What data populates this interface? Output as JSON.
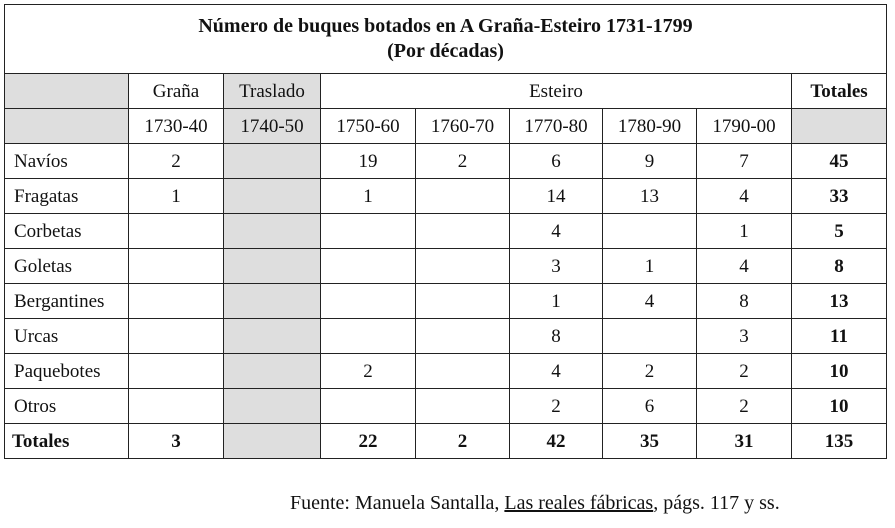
{
  "title": {
    "line1": "Número de buques botados en A Graña-Esteiro 1731-1799",
    "line2": "(Por décadas)"
  },
  "header": {
    "places": [
      "Graña",
      "Traslado",
      "Esteiro"
    ],
    "totals": "Totales",
    "decades": [
      "1730-40",
      "1740-50",
      "1750-60",
      "1760-70",
      "1770-80",
      "1780-90",
      "1790-00"
    ]
  },
  "rows": [
    {
      "label": "Navíos",
      "values": [
        "2",
        "",
        "19",
        "2",
        "6",
        "9",
        "7"
      ],
      "total": "45"
    },
    {
      "label": "Fragatas",
      "values": [
        "1",
        "",
        "1",
        "",
        "14",
        "13",
        "4"
      ],
      "total": "33"
    },
    {
      "label": "Corbetas",
      "values": [
        "",
        "",
        "",
        "",
        "4",
        "",
        "1"
      ],
      "total": "5"
    },
    {
      "label": "Goletas",
      "values": [
        "",
        "",
        "",
        "",
        "3",
        "1",
        "4"
      ],
      "total": "8"
    },
    {
      "label": "Bergantines",
      "values": [
        "",
        "",
        "",
        "",
        "1",
        "4",
        "8"
      ],
      "total": "13"
    },
    {
      "label": "Urcas",
      "values": [
        "",
        "",
        "",
        "",
        "8",
        "",
        "3"
      ],
      "total": "11"
    },
    {
      "label": "Paquebotes",
      "values": [
        "",
        "",
        "2",
        "",
        "4",
        "2",
        "2"
      ],
      "total": "10"
    },
    {
      "label": "Otros",
      "values": [
        "",
        "",
        "",
        "",
        "2",
        "6",
        "2"
      ],
      "total": "10"
    }
  ],
  "totals_row": {
    "label": "Totales",
    "values": [
      "3",
      "",
      "22",
      "2",
      "42",
      "35",
      "31"
    ],
    "total": "135"
  },
  "source": {
    "prefix": "Fuente: Manuela Santalla, ",
    "book": "Las reales fábricas",
    "suffix": ", págs. 117 y ss."
  }
}
